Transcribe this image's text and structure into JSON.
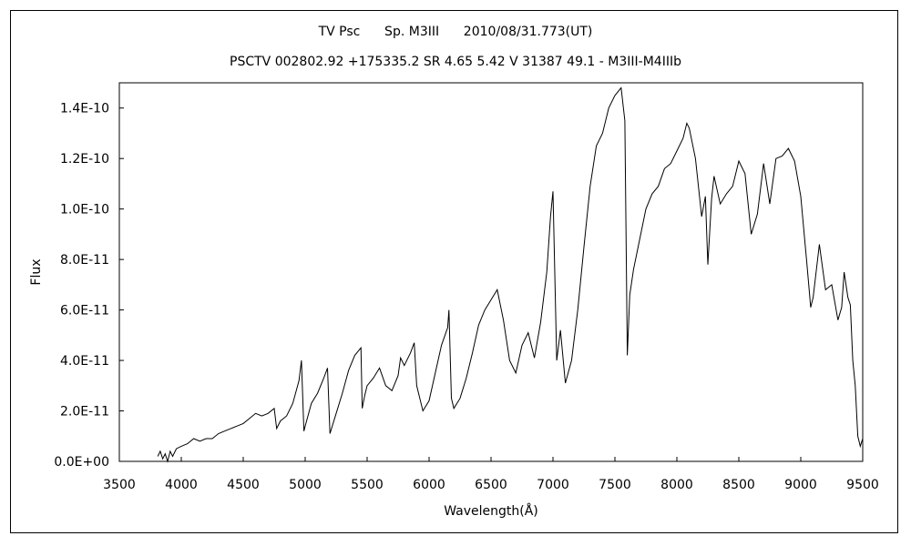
{
  "chart_data": {
    "type": "line",
    "title": "TV Psc      Sp. M3III      2010/08/31.773(UT)",
    "subtitle": "PSCTV 002802.92 +175335.2 SR 4.65 5.42 V 31387 49.1 - M3III-M4IIIb",
    "xlabel": "Wavelength(Å)",
    "ylabel": "Flux",
    "xlim": [
      3500,
      9500
    ],
    "ylim": [
      0,
      1.5e-10
    ],
    "x_ticks": [
      3500,
      4000,
      4500,
      5000,
      5500,
      6000,
      6500,
      7000,
      7500,
      8000,
      8500,
      9000,
      9500
    ],
    "x_tick_labels": [
      "3500",
      "4000",
      "4500",
      "5000",
      "5500",
      "6000",
      "6500",
      "7000",
      "7500",
      "8000",
      "8500",
      "9000",
      "9500"
    ],
    "y_ticks": [
      0,
      2e-11,
      4e-11,
      6e-11,
      8e-11,
      1e-10,
      1.2e-10,
      1.4e-10
    ],
    "y_tick_labels": [
      "0.0E+00",
      "2.0E-11",
      "4.0E-11",
      "6.0E-11",
      "8.0E-11",
      "1.0E-10",
      "1.2E-10",
      "1.4E-10"
    ],
    "grid": false,
    "legend": "none",
    "line_color": "#000000",
    "series": [
      {
        "x": [
          3810,
          3830,
          3850,
          3870,
          3890,
          3910,
          3930,
          3960,
          4000,
          4050,
          4100,
          4150,
          4200,
          4250,
          4300,
          4350,
          4400,
          4450,
          4500,
          4550,
          4600,
          4650,
          4700,
          4750,
          4770,
          4800,
          4850,
          4900,
          4950,
          4970,
          4990,
          5000,
          5050,
          5100,
          5150,
          5180,
          5200,
          5250,
          5300,
          5350,
          5400,
          5450,
          5460,
          5480,
          5500,
          5550,
          5600,
          5650,
          5700,
          5750,
          5770,
          5800,
          5850,
          5880,
          5900,
          5950,
          6000,
          6050,
          6100,
          6150,
          6160,
          6180,
          6200,
          6250,
          6300,
          6350,
          6400,
          6450,
          6500,
          6550,
          6600,
          6650,
          6700,
          6750,
          6800,
          6850,
          6900,
          6950,
          6980,
          7000,
          7030,
          7060,
          7100,
          7150,
          7200,
          7250,
          7300,
          7350,
          7400,
          7450,
          7500,
          7550,
          7580,
          7600,
          7620,
          7650,
          7700,
          7750,
          7800,
          7850,
          7900,
          7950,
          8000,
          8050,
          8080,
          8100,
          8150,
          8200,
          8230,
          8250,
          8280,
          8300,
          8350,
          8400,
          8450,
          8500,
          8550,
          8600,
          8650,
          8700,
          8750,
          8800,
          8850,
          8900,
          8950,
          9000,
          9050,
          9080,
          9100,
          9150,
          9200,
          9250,
          9300,
          9330,
          9350,
          9380,
          9400,
          9420,
          9440,
          9460,
          9480,
          9500
        ],
        "y": [
          2e-12,
          4e-12,
          1e-12,
          3e-12,
          0.0,
          4e-12,
          2e-12,
          5e-12,
          6e-12,
          7e-12,
          9e-12,
          8e-12,
          9e-12,
          9e-12,
          1.1e-11,
          1.2e-11,
          1.3e-11,
          1.4e-11,
          1.5e-11,
          1.7e-11,
          1.9e-11,
          1.8e-11,
          1.9e-11,
          2.1e-11,
          1.3e-11,
          1.6e-11,
          1.8e-11,
          2.3e-11,
          3.2e-11,
          4e-11,
          1.2e-11,
          1.4e-11,
          2.3e-11,
          2.7e-11,
          3.3e-11,
          3.7e-11,
          1.1e-11,
          1.9e-11,
          2.7e-11,
          3.6e-11,
          4.2e-11,
          4.5e-11,
          2.1e-11,
          2.6e-11,
          3e-11,
          3.3e-11,
          3.7e-11,
          3e-11,
          2.8e-11,
          3.4e-11,
          4.1e-11,
          3.8e-11,
          4.3e-11,
          4.7e-11,
          3e-11,
          2e-11,
          2.4e-11,
          3.5e-11,
          4.6e-11,
          5.3e-11,
          6e-11,
          2.5e-11,
          2.1e-11,
          2.5e-11,
          3.3e-11,
          4.3e-11,
          5.4e-11,
          6e-11,
          6.4e-11,
          6.8e-11,
          5.6e-11,
          4e-11,
          3.5e-11,
          4.6e-11,
          5.1e-11,
          4.1e-11,
          5.5e-11,
          7.5e-11,
          9.7e-11,
          1.07e-10,
          4e-11,
          5.2e-11,
          3.1e-11,
          4e-11,
          6e-11,
          8.5e-11,
          1.09e-10,
          1.25e-10,
          1.3e-10,
          1.4e-10,
          1.45e-10,
          1.48e-10,
          1.35e-10,
          4.2e-11,
          6.6e-11,
          7.6e-11,
          8.8e-11,
          1e-10,
          1.06e-10,
          1.09e-10,
          1.16e-10,
          1.18e-10,
          1.23e-10,
          1.28e-10,
          1.34e-10,
          1.32e-10,
          1.2e-10,
          9.7e-11,
          1.05e-10,
          7.8e-11,
          1.04e-10,
          1.13e-10,
          1.02e-10,
          1.06e-10,
          1.09e-10,
          1.19e-10,
          1.14e-10,
          9e-11,
          9.8e-11,
          1.18e-10,
          1.02e-10,
          1.2e-10,
          1.21e-10,
          1.24e-10,
          1.19e-10,
          1.05e-10,
          7.8e-11,
          6.1e-11,
          6.5e-11,
          8.6e-11,
          6.8e-11,
          7e-11,
          5.6e-11,
          6.1e-11,
          7.5e-11,
          6.5e-11,
          6.2e-11,
          4e-11,
          3e-11,
          1e-11,
          6e-12,
          9e-12
        ]
      }
    ]
  }
}
